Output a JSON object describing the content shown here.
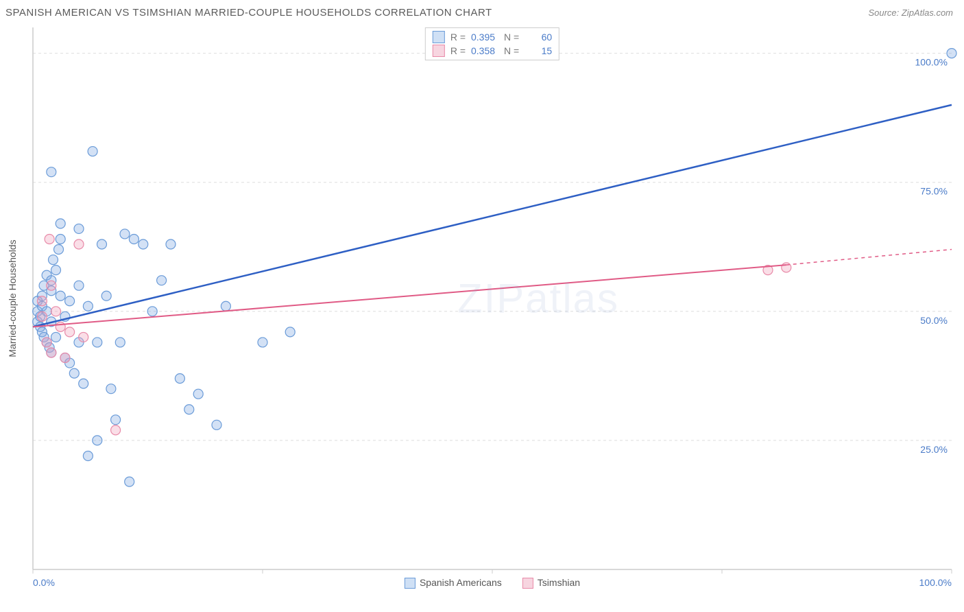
{
  "title": "SPANISH AMERICAN VS TSIMSHIAN MARRIED-COUPLE HOUSEHOLDS CORRELATION CHART",
  "source": "Source: ZipAtlas.com",
  "watermark": "ZIPatlas",
  "y_axis_label": "Married-couple Households",
  "chart": {
    "type": "scatter",
    "xlim": [
      0,
      100
    ],
    "ylim": [
      0,
      105
    ],
    "background_color": "#ffffff",
    "grid_color": "#dddddd",
    "grid_style": "dashed",
    "y_ticks": [
      {
        "value": 25,
        "label": "25.0%"
      },
      {
        "value": 50,
        "label": "50.0%"
      },
      {
        "value": 75,
        "label": "75.0%"
      },
      {
        "value": 100,
        "label": "100.0%"
      }
    ],
    "x_ticks": [
      {
        "value": 0,
        "label": "0.0%"
      },
      {
        "value": 25,
        "label": ""
      },
      {
        "value": 50,
        "label": ""
      },
      {
        "value": 75,
        "label": ""
      },
      {
        "value": 100,
        "label": "100.0%"
      }
    ],
    "tick_label_color": "#4a7bc8",
    "tick_label_fontsize": 14,
    "series": [
      {
        "name": "Spanish Americans",
        "marker_color_fill": "rgba(130,170,225,0.35)",
        "marker_color_stroke": "#6a9bd8",
        "marker_radius": 7,
        "swatch_fill": "#cfe0f5",
        "swatch_border": "#6a9bd8",
        "R": "0.395",
        "N": "60",
        "regression": {
          "x1": 0,
          "y1": 47,
          "x2": 100,
          "y2": 90,
          "color": "#2e5fc4",
          "width": 2.5,
          "dash_extend": false
        },
        "points": [
          [
            0.5,
            48
          ],
          [
            0.5,
            50
          ],
          [
            0.5,
            52
          ],
          [
            0.8,
            49
          ],
          [
            0.8,
            47
          ],
          [
            1,
            46
          ],
          [
            1,
            53
          ],
          [
            1,
            51
          ],
          [
            1.2,
            55
          ],
          [
            1.2,
            45
          ],
          [
            1.5,
            57
          ],
          [
            1.5,
            50
          ],
          [
            1.5,
            44
          ],
          [
            1.8,
            43
          ],
          [
            2,
            54
          ],
          [
            2,
            56
          ],
          [
            2,
            48
          ],
          [
            2,
            42
          ],
          [
            2.2,
            60
          ],
          [
            2.5,
            58
          ],
          [
            2.5,
            45
          ],
          [
            2.8,
            62
          ],
          [
            3,
            53
          ],
          [
            3,
            64
          ],
          [
            3,
            67
          ],
          [
            3.5,
            41
          ],
          [
            3.5,
            49
          ],
          [
            4,
            40
          ],
          [
            4,
            52
          ],
          [
            4.5,
            38
          ],
          [
            5,
            44
          ],
          [
            5,
            55
          ],
          [
            5,
            66
          ],
          [
            5.5,
            36
          ],
          [
            6,
            22
          ],
          [
            6,
            51
          ],
          [
            6.5,
            81
          ],
          [
            7,
            25
          ],
          [
            7,
            44
          ],
          [
            7.5,
            63
          ],
          [
            8,
            53
          ],
          [
            8.5,
            35
          ],
          [
            9,
            29
          ],
          [
            9.5,
            44
          ],
          [
            10,
            65
          ],
          [
            10.5,
            17
          ],
          [
            11,
            64
          ],
          [
            12,
            63
          ],
          [
            13,
            50
          ],
          [
            14,
            56
          ],
          [
            15,
            63
          ],
          [
            16,
            37
          ],
          [
            17,
            31
          ],
          [
            18,
            34
          ],
          [
            20,
            28
          ],
          [
            21,
            51
          ],
          [
            25,
            44
          ],
          [
            28,
            46
          ],
          [
            2,
            77
          ],
          [
            100,
            100
          ]
        ]
      },
      {
        "name": "Tsimshian",
        "marker_color_fill": "rgba(240,160,185,0.35)",
        "marker_color_stroke": "#e88aa8",
        "marker_radius": 7,
        "swatch_fill": "#f7d5e0",
        "swatch_border": "#e88aa8",
        "R": "0.358",
        "N": "15",
        "regression": {
          "x1": 0,
          "y1": 47,
          "x2": 82,
          "y2": 59,
          "color": "#e05a85",
          "width": 2,
          "dash_extend": true,
          "dash_x2": 100,
          "dash_y2": 62
        },
        "points": [
          [
            1,
            52
          ],
          [
            1,
            49
          ],
          [
            1.5,
            44
          ],
          [
            1.8,
            64
          ],
          [
            2,
            42
          ],
          [
            2,
            55
          ],
          [
            2.5,
            50
          ],
          [
            3,
            47
          ],
          [
            3.5,
            41
          ],
          [
            4,
            46
          ],
          [
            5,
            63
          ],
          [
            5.5,
            45
          ],
          [
            9,
            27
          ],
          [
            80,
            58
          ],
          [
            82,
            58.5
          ]
        ]
      }
    ]
  },
  "bottom_legend": [
    {
      "label": "Spanish Americans",
      "fill": "#cfe0f5",
      "border": "#6a9bd8"
    },
    {
      "label": "Tsimshian",
      "fill": "#f7d5e0",
      "border": "#e88aa8"
    }
  ]
}
